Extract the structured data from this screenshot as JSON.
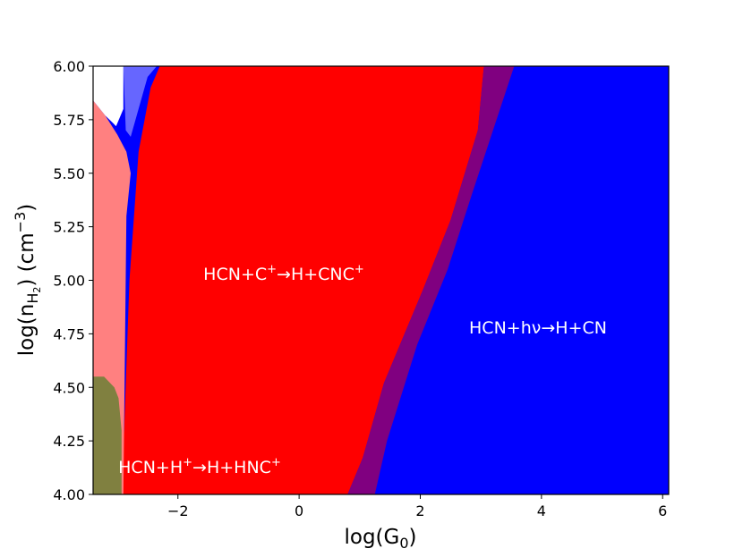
{
  "chart_data": {
    "type": "area",
    "title": "",
    "xlabel": "log(G$_0$)",
    "ylabel": "log(n$_{\\mathrm{H_2}}$) (cm$^{-3}$)",
    "xlim": [
      -3.4,
      6.1
    ],
    "ylim": [
      4.0,
      6.0
    ],
    "xticks": [
      -2,
      0,
      2,
      4,
      6
    ],
    "xtick_labels": [
      "−2",
      "0",
      "2",
      "4",
      "6"
    ],
    "yticks": [
      4.0,
      4.25,
      4.5,
      4.75,
      5.0,
      5.25,
      5.5,
      5.75,
      6.0
    ],
    "ytick_labels": [
      "4.00",
      "4.25",
      "4.50",
      "4.75",
      "5.00",
      "5.25",
      "5.50",
      "5.75",
      "6.00"
    ],
    "grid": false,
    "background_fill": "#0000ff",
    "regions": [
      {
        "key": "cnc",
        "color": "#ff0000",
        "polygon": [
          [
            -2.93,
            4.0
          ],
          [
            -2.9,
            4.2
          ],
          [
            -2.8,
            5.0
          ],
          [
            -2.65,
            5.6
          ],
          [
            -2.45,
            5.9
          ],
          [
            -2.3,
            6.0
          ],
          [
            3.05,
            6.0
          ],
          [
            2.95,
            5.7
          ],
          [
            2.5,
            5.28
          ],
          [
            2.05,
            4.96
          ],
          [
            1.4,
            4.52
          ],
          [
            1.05,
            4.17
          ],
          [
            0.8,
            4.0
          ]
        ]
      },
      {
        "key": "hnc_light",
        "color": "#ff8080",
        "polygon": [
          [
            -3.4,
            4.0
          ],
          [
            -3.4,
            5.84
          ],
          [
            -3.2,
            5.77
          ],
          [
            -3.0,
            5.68
          ],
          [
            -2.85,
            5.6
          ],
          [
            -2.78,
            5.5
          ],
          [
            -2.85,
            5.3
          ],
          [
            -2.9,
            4.0
          ]
        ]
      },
      {
        "key": "hnc_dark",
        "color": "#808040",
        "polygon": [
          [
            -3.4,
            4.0
          ],
          [
            -3.4,
            4.55
          ],
          [
            -3.22,
            4.55
          ],
          [
            -3.05,
            4.5
          ],
          [
            -2.98,
            4.45
          ],
          [
            -2.93,
            4.3
          ],
          [
            -2.93,
            4.0
          ]
        ]
      },
      {
        "key": "purple_top",
        "color": "#6666ff",
        "polygon": [
          [
            -2.9,
            6.0
          ],
          [
            -2.86,
            5.7
          ],
          [
            -2.78,
            5.67
          ],
          [
            -2.5,
            5.95
          ],
          [
            -2.35,
            6.0
          ]
        ]
      },
      {
        "key": "purple_band",
        "color": "#800080",
        "polygon": [
          [
            0.8,
            4.0
          ],
          [
            1.05,
            4.17
          ],
          [
            1.4,
            4.52
          ],
          [
            2.05,
            4.96
          ],
          [
            2.5,
            5.28
          ],
          [
            2.95,
            5.7
          ],
          [
            3.05,
            6.0
          ],
          [
            3.55,
            6.0
          ],
          [
            2.85,
            5.4
          ],
          [
            2.45,
            5.05
          ],
          [
            1.95,
            4.7
          ],
          [
            1.45,
            4.25
          ],
          [
            1.25,
            4.0
          ]
        ]
      },
      {
        "key": "white_corner",
        "color": "#ffffff",
        "polygon": [
          [
            -3.4,
            6.0
          ],
          [
            -3.4,
            5.84
          ],
          [
            -3.2,
            5.77
          ],
          [
            -3.02,
            5.72
          ],
          [
            -2.9,
            5.8
          ],
          [
            -2.9,
            6.0
          ]
        ]
      }
    ],
    "annotations": [
      {
        "key": "cnc",
        "text": "HCN+C$^+$$\\rightarrow$H+CNC$^+$",
        "x": -0.35,
        "y": 5.03
      },
      {
        "key": "cn",
        "text": "HCN+h$\\nu$$\\rightarrow$H+CN",
        "x": 3.95,
        "y": 4.78
      },
      {
        "key": "hnc",
        "text": "HCN+H$^+$$\\rightarrow$H+HNC$^+$",
        "x": -1.65,
        "y": 4.13
      }
    ]
  },
  "labels": {
    "xaxis_main": "log(G",
    "xaxis_sub": "0",
    "xaxis_close": ")",
    "yaxis_main": "log(n",
    "yaxis_sub": "H",
    "yaxis_subsub": "2",
    "yaxis_close": ") (cm",
    "yaxis_sup": "−3",
    "yaxis_end": ")",
    "ann_cnc_a": "HCN+C",
    "ann_cnc_sup": "+",
    "ann_cnc_b": "→H+CNC",
    "ann_cnc_sup2": "+",
    "ann_cn_a": "HCN+hν→H+CN",
    "ann_hnc_a": "HCN+H",
    "ann_hnc_sup": "+",
    "ann_hnc_b": "→H+HNC",
    "ann_hnc_sup2": "+"
  }
}
